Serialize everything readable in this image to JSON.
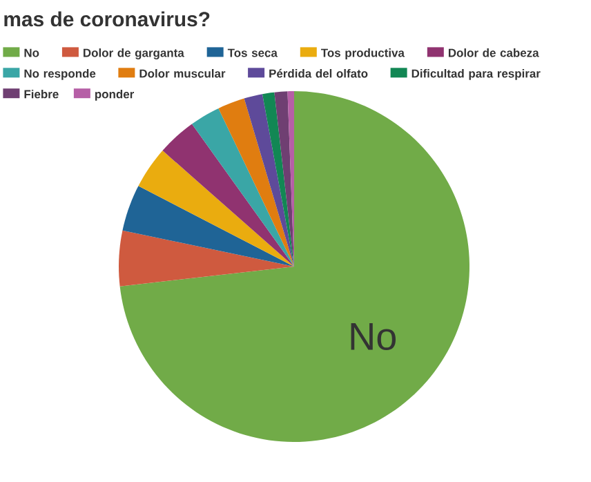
{
  "chart_data": {
    "type": "pie",
    "title": "mas de coronavirus?",
    "categories": [
      "No",
      "Dolor de garganta",
      "Tos seca",
      "Tos productiva",
      "Dolor de cabeza",
      "No responde",
      "Dolor muscular",
      "Pérdida del olfato",
      "Dificultad para respirar",
      "Fiebre",
      "ponder"
    ],
    "values": [
      73.2,
      5.1,
      4.3,
      3.9,
      3.6,
      2.8,
      2.5,
      1.7,
      1.1,
      1.2,
      0.6
    ],
    "colors": [
      "#71ab48",
      "#cf5a3f",
      "#1f6496",
      "#eaac0f",
      "#903370",
      "#3aa6a6",
      "#e07d10",
      "#5e4a9a",
      "#128754",
      "#6f3f72",
      "#b65fa6"
    ],
    "legend": "top",
    "annotations": [
      {
        "text": "No",
        "x": "No"
      }
    ]
  }
}
